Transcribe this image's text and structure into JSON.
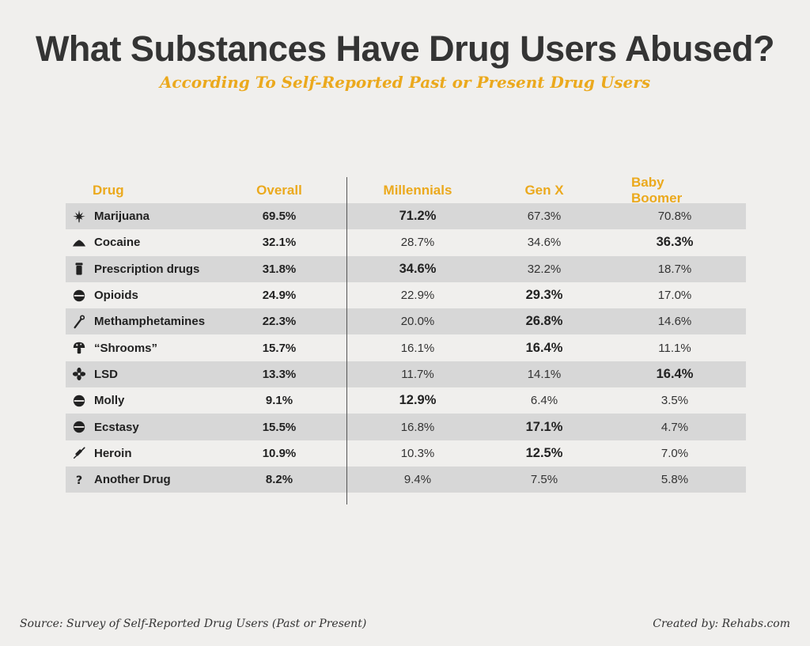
{
  "title": "What Substances Have Drug Users Abused?",
  "subtitle": "According To Self-Reported Past or Present Drug Users",
  "colors": {
    "accent": "#eba91d",
    "shade": "#d7d7d7",
    "text": "#333333"
  },
  "chart_data": {
    "type": "table",
    "title": "What Substances Have Drug Users Abused?",
    "subtitle": "According To Self-Reported Past or Present Drug Users",
    "columns": [
      "Drug",
      "Overall",
      "Millennials",
      "Gen X",
      "Baby Boomer"
    ],
    "rows": [
      {
        "icon": "cannabis-leaf-icon",
        "drug": "Marijuana",
        "overall": "69.5%",
        "millennials": "71.2%",
        "genx": "67.3%",
        "boomer": "70.8%",
        "bold": "millennials"
      },
      {
        "icon": "powder-pile-icon",
        "drug": "Cocaine",
        "overall": "32.1%",
        "millennials": "28.7%",
        "genx": "34.6%",
        "boomer": "36.3%",
        "bold": "boomer"
      },
      {
        "icon": "pill-bottle-icon",
        "drug": "Prescription drugs",
        "overall": "31.8%",
        "millennials": "34.6%",
        "genx": "32.2%",
        "boomer": "18.7%",
        "bold": "millennials"
      },
      {
        "icon": "pill-icon",
        "drug": "Opioids",
        "overall": "24.9%",
        "millennials": "22.9%",
        "genx": "29.3%",
        "boomer": "17.0%",
        "bold": "genx"
      },
      {
        "icon": "pipe-icon",
        "drug": "Methamphetamines",
        "overall": "22.3%",
        "millennials": "20.0%",
        "genx": "26.8%",
        "boomer": "14.6%",
        "bold": "genx"
      },
      {
        "icon": "mushroom-icon",
        "drug": "“Shrooms”",
        "overall": "15.7%",
        "millennials": "16.1%",
        "genx": "16.4%",
        "boomer": "11.1%",
        "bold": "genx"
      },
      {
        "icon": "blotter-icon",
        "drug": "LSD",
        "overall": "13.3%",
        "millennials": "11.7%",
        "genx": "14.1%",
        "boomer": "16.4%",
        "bold": "boomer"
      },
      {
        "icon": "pill-icon",
        "drug": "Molly",
        "overall": "9.1%",
        "millennials": "12.9%",
        "genx": "6.4%",
        "boomer": "3.5%",
        "bold": "millennials"
      },
      {
        "icon": "pill-icon",
        "drug": "Ecstasy",
        "overall": "15.5%",
        "millennials": "16.8%",
        "genx": "17.1%",
        "boomer": "4.7%",
        "bold": "genx"
      },
      {
        "icon": "syringe-icon",
        "drug": "Heroin",
        "overall": "10.9%",
        "millennials": "10.3%",
        "genx": "12.5%",
        "boomer": "7.0%",
        "bold": "genx"
      },
      {
        "icon": "question-icon",
        "drug": "Another Drug",
        "overall": "8.2%",
        "millennials": "9.4%",
        "genx": "7.5%",
        "boomer": "5.8%",
        "bold": "none"
      }
    ]
  },
  "footer": {
    "source": "Source: Survey of Self-Reported Drug Users (Past or Present)",
    "credit": "Created by: Rehabs.com"
  }
}
